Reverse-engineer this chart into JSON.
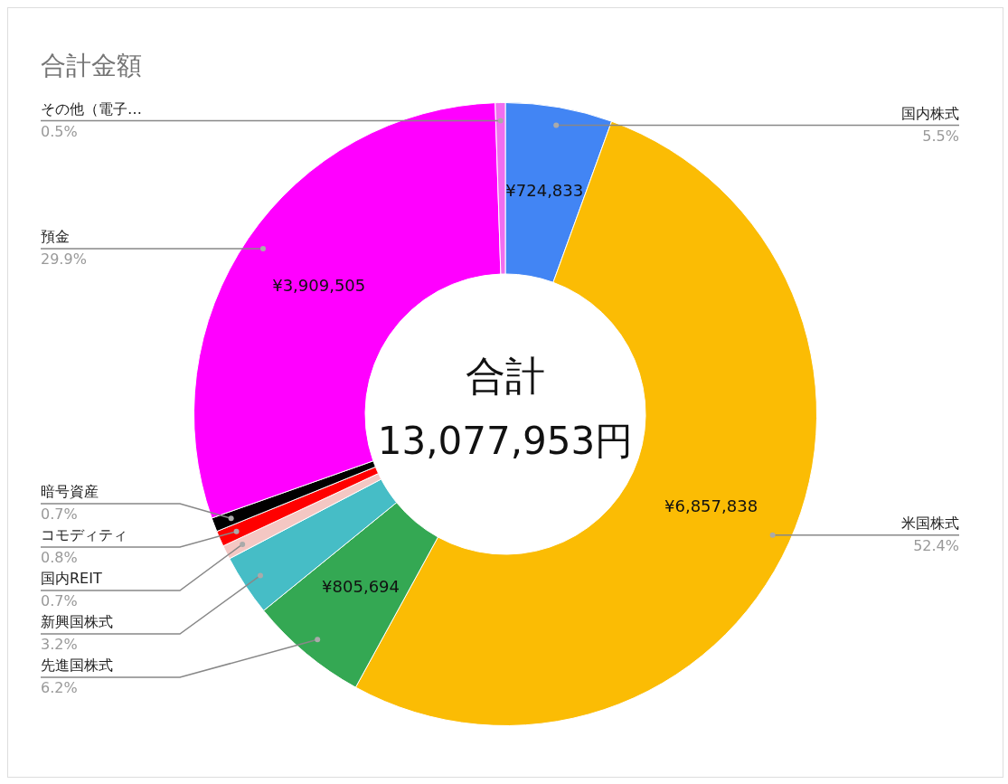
{
  "chart_data": {
    "type": "donut",
    "title": "合計金額",
    "categories": [
      "国内株式",
      "米国株式",
      "先進国株式",
      "新興国株式",
      "国内REIT",
      "コモディティ",
      "暗号資産",
      "預金",
      "その他（電子…"
    ],
    "values": [
      724833,
      6857838,
      805694,
      416000,
      95000,
      106000,
      95000,
      3909505,
      68000
    ],
    "colors": [
      "#4285f4",
      "#fbbc04",
      "#34a853",
      "#46bdc6",
      "#f4c7c3",
      "#ff0000",
      "#000000",
      "#ff00ff",
      "#f06ef0"
    ],
    "value_labels": [
      "¥724,833",
      "¥6,857,838",
      "¥805,694",
      null,
      null,
      null,
      null,
      "¥3,909,505",
      null
    ],
    "annotations": [
      {
        "text": "5.5%",
        "x": "国内株式"
      },
      {
        "text": "52.4%",
        "x": "米国株式"
      },
      {
        "text": "6.2%",
        "x": "先進国株式"
      },
      {
        "text": "3.2%",
        "x": "新興国株式"
      },
      {
        "text": "0.7%",
        "x": "国内REIT"
      },
      {
        "text": "0.8%",
        "x": "コモディティ"
      },
      {
        "text": "0.7%",
        "x": "暗号資産"
      },
      {
        "text": "29.9%",
        "x": "預金"
      },
      {
        "text": "0.5%",
        "x": "その他（電子…"
      },
      "合計",
      "13,077,953円"
    ],
    "legend": false
  }
}
